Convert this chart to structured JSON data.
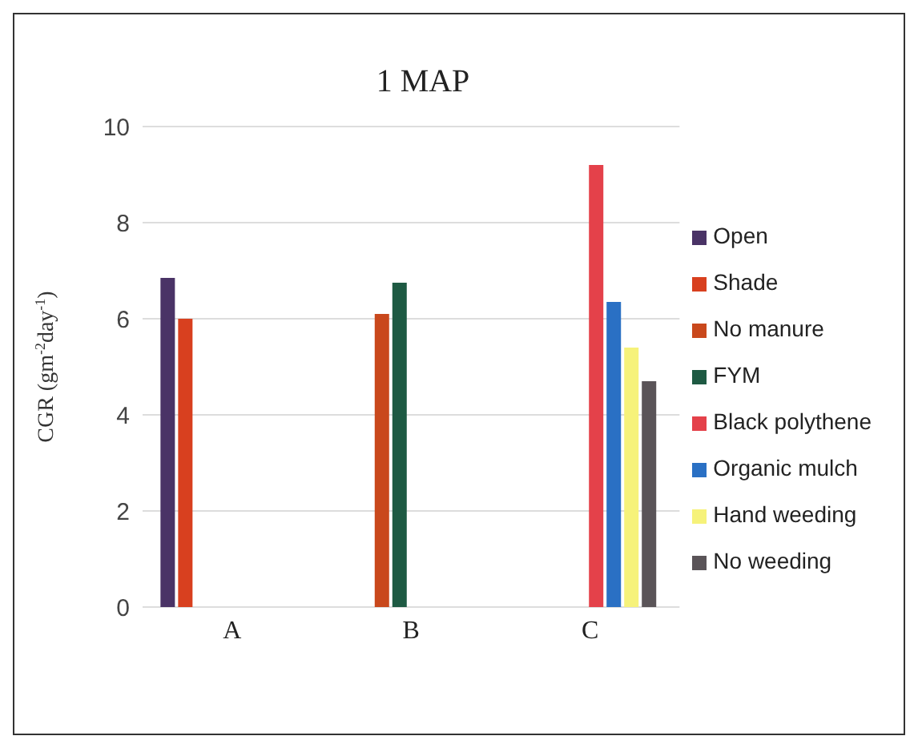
{
  "chart_data": {
    "type": "bar",
    "title": "1 MAP",
    "ylabel": "CGR (gm$^{-2}$day$^{-1}$)",
    "categories": [
      "A",
      "B",
      "C"
    ],
    "series": [
      {
        "name": "Open",
        "color": "#4a3366",
        "values": [
          6.85,
          null,
          null
        ]
      },
      {
        "name": "Shade",
        "color": "#d8401f",
        "values": [
          6.0,
          null,
          null
        ]
      },
      {
        "name": "No manure",
        "color": "#c9481c",
        "values": [
          null,
          6.1,
          null
        ]
      },
      {
        "name": "FYM",
        "color": "#1e5a43",
        "values": [
          null,
          6.75,
          null
        ]
      },
      {
        "name": "Black polythene",
        "color": "#e4414a",
        "values": [
          null,
          null,
          9.2
        ]
      },
      {
        "name": "Organic mulch",
        "color": "#2a70c4",
        "values": [
          null,
          null,
          6.35
        ]
      },
      {
        "name": "Hand weeding",
        "color": "#f6f27a",
        "values": [
          null,
          null,
          5.4
        ]
      },
      {
        "name": "No weeding",
        "color": "#5a5458",
        "values": [
          null,
          null,
          4.7
        ]
      }
    ],
    "ylim": [
      0,
      10
    ],
    "yticks": [
      0,
      2,
      4,
      6,
      8,
      10
    ],
    "grid": "y",
    "legend": "right"
  }
}
